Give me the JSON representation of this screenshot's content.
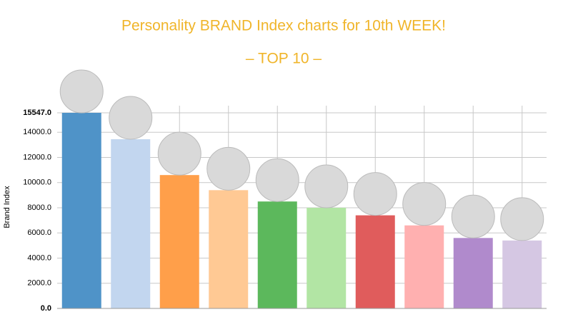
{
  "chart_data": {
    "type": "bar",
    "title": "Personality BRAND Index charts for 10th WEEK!",
    "subtitle": "– TOP 10 –",
    "y_label": "Brand Index",
    "categories": [
      null,
      null,
      null,
      null,
      null,
      null,
      null,
      null,
      null,
      null
    ],
    "values": [
      15547,
      13450,
      10600,
      9400,
      8500,
      8000,
      7400,
      6600,
      5600,
      5400
    ],
    "colors": [
      "#4f93c8",
      "#c2d6ef",
      "#ff9f4a",
      "#ffc994",
      "#5cb85c",
      "#b2e5a4",
      "#e05c5c",
      "#ffb0b0",
      "#b08acc",
      "#d5c7e3"
    ],
    "ylim": [
      0,
      15547
    ],
    "yticks": [
      {
        "value": 0,
        "label": "0.0"
      },
      {
        "value": 2000,
        "label": "2000.0"
      },
      {
        "value": 4000,
        "label": "4000.0"
      },
      {
        "value": 6000,
        "label": "6000.0"
      },
      {
        "value": 8000,
        "label": "8000.0"
      },
      {
        "value": 10000,
        "label": "10000.0"
      },
      {
        "value": 12000,
        "label": "12000.0"
      },
      {
        "value": 14000,
        "label": "14000.0"
      },
      {
        "value": 15547,
        "label": "15547.0"
      }
    ],
    "grid": true
  }
}
